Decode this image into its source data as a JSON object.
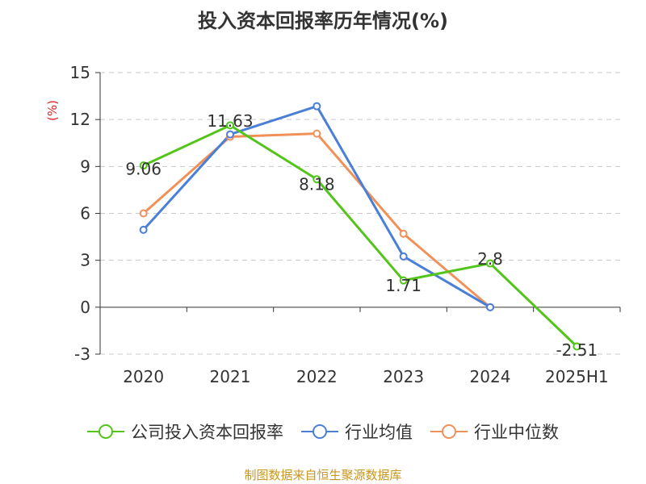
{
  "chart_data": {
    "type": "line",
    "title": "投入资本回报率历年情况(%)",
    "ylabel": "(%)",
    "xlabel": "",
    "categories": [
      "2020",
      "2021",
      "2022",
      "2023",
      "2024",
      "2025H1"
    ],
    "ylim": [
      -3,
      15
    ],
    "yticks": [
      -3,
      0,
      3,
      6,
      9,
      12,
      15
    ],
    "grid": true,
    "legend_position": "bottom",
    "series": [
      {
        "name": "公司投入资本回报率",
        "color": "#52c41a",
        "values": [
          9.06,
          11.63,
          8.18,
          1.71,
          2.8,
          -2.51
        ],
        "labels": [
          "9.06",
          "11.63",
          "8.18",
          "1.71",
          "2.8",
          "-2.51"
        ]
      },
      {
        "name": "行业均值",
        "color": "#4a7fd8",
        "values": [
          4.95,
          11.05,
          12.85,
          3.25,
          0.0,
          null
        ]
      },
      {
        "name": "行业中位数",
        "color": "#f0915a",
        "values": [
          6.0,
          10.9,
          11.1,
          4.7,
          0.0,
          null
        ]
      }
    ]
  },
  "source": "制图数据来自恒生聚源数据库"
}
